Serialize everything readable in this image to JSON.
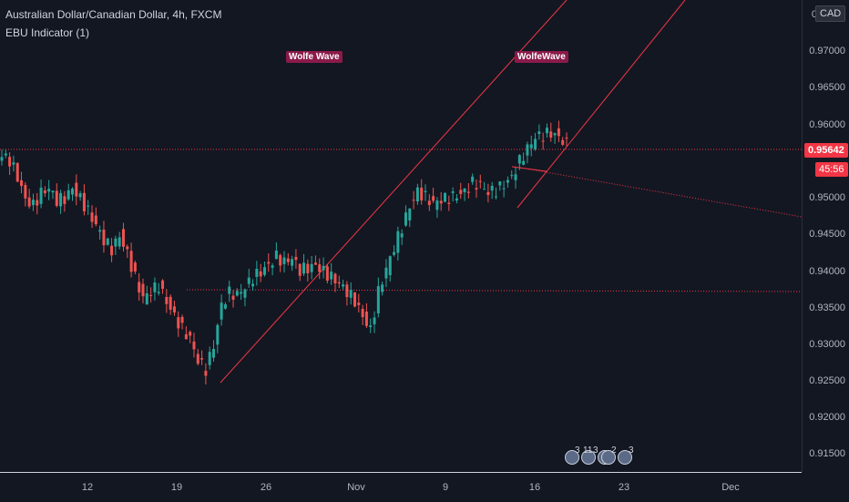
{
  "header": {
    "symbol_title": "Australian Dollar/Canadian Dollar, 4h, FXCM",
    "indicator": "EBU Indicator (1)"
  },
  "currency_label": "CAD",
  "annotations": {
    "wolfe_left": "Wolfe Wave",
    "wolfe_right": "WolfeWave"
  },
  "price_axis": {
    "labels": [
      "0.97000",
      "0.96500",
      "0.96000",
      "0.95000",
      "0.94500",
      "0.94000",
      "0.93500",
      "0.93000",
      "0.92500",
      "0.92000",
      "0.91500"
    ],
    "top_partial": "0"
  },
  "time_axis": {
    "labels": [
      "12",
      "19",
      "26",
      "Nov",
      "9",
      "16",
      "23",
      "Dec"
    ]
  },
  "current_price": {
    "value": "0.95642",
    "countdown": "45:56"
  },
  "events": {
    "counts": [
      "3",
      "11",
      "3",
      "2",
      "3"
    ]
  },
  "colors": {
    "background": "#131722",
    "bull": "#26a69a",
    "bear": "#ef5350",
    "trendline": "#f23645",
    "wolfe_label": "#8b1a4a"
  },
  "chart_data": {
    "type": "candlestick",
    "ylim": [
      0.9115,
      0.976
    ],
    "ohlc_close_sampled": [
      0.9545,
      0.954,
      0.952,
      0.949,
      0.948,
      0.9495,
      0.95,
      0.9485,
      0.949,
      0.9505,
      0.949,
      0.947,
      0.945,
      0.943,
      0.942,
      0.944,
      0.9415,
      0.938,
      0.935,
      0.936,
      0.937,
      0.935,
      0.933,
      0.931,
      0.9295,
      0.9265,
      0.9255,
      0.929,
      0.9345,
      0.936,
      0.9355,
      0.9365,
      0.938,
      0.939,
      0.94,
      0.941,
      0.94,
      0.9405,
      0.939,
      0.9395,
      0.94,
      0.939,
      0.938,
      0.937,
      0.936,
      0.935,
      0.933,
      0.931,
      0.936,
      0.939,
      0.942,
      0.945,
      0.948,
      0.95,
      0.949,
      0.948,
      0.9485,
      0.949,
      0.9495,
      0.95,
      0.951,
      0.9505,
      0.9495,
      0.95,
      0.951,
      0.952,
      0.954,
      0.9555,
      0.957,
      0.9575,
      0.958,
      0.9575,
      0.9564
    ],
    "horizontal_levels": [
      0.95642,
      0.9372
    ],
    "annotations": [
      "Wolfe Wave",
      "WolfeWave"
    ]
  }
}
